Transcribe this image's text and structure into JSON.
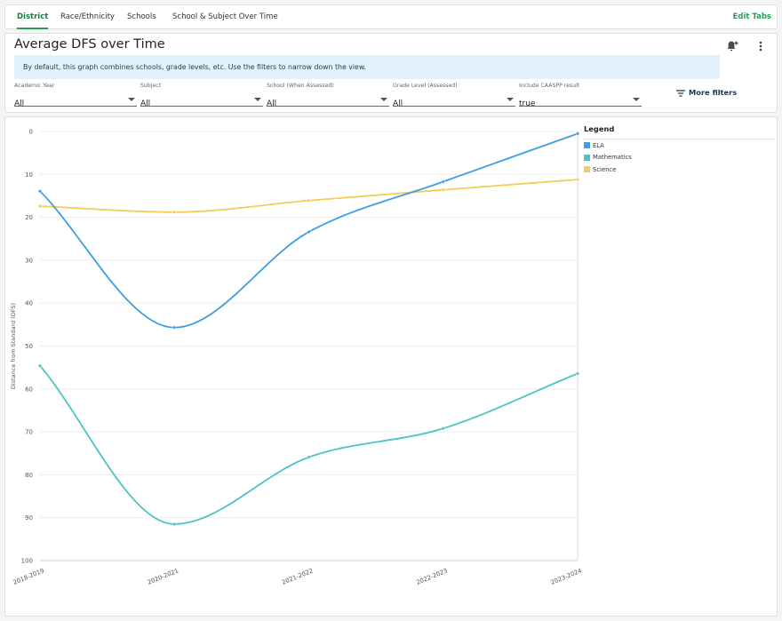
{
  "tabs": [
    "District",
    "Race/Ethnicity",
    "Schools",
    "School & Subject Over Time"
  ],
  "edit_tabs": "Edit Tabs",
  "card": {
    "title": "Average DFS over Time",
    "info": "By default, this graph combines schools, grade levels, etc. Use the filters to narrow down the view."
  },
  "filters": [
    {
      "label": "Academic Year",
      "value": "All"
    },
    {
      "label": "Subject",
      "value": "All"
    },
    {
      "label": "School (When Assessed)",
      "value": "All"
    },
    {
      "label": "Grade Level (Assessed)",
      "value": "All"
    },
    {
      "label": "Include CAASPP result",
      "value": "true"
    }
  ],
  "more_filters": "More filters",
  "icons": {
    "bell": "bell-plus-icon",
    "menu": "kebab-menu-icon",
    "filter": "filter-lines-icon"
  },
  "colors": {
    "accent": "#2a9d55",
    "ela": "#3d9fdf",
    "math": "#4cc4c4",
    "science": "#f5cd5a"
  },
  "chart_data": {
    "type": "line",
    "categories": [
      "2018-2019",
      "2020-2021",
      "2021-2022",
      "2022-2023",
      "2023-2024"
    ],
    "ylabel": "Distance from Standard (DFS)",
    "ylim": [
      100,
      0
    ],
    "yticks": [
      0,
      10,
      20,
      30,
      40,
      50,
      60,
      70,
      80,
      90,
      100
    ],
    "y_reversed": true,
    "grid": true,
    "legend_title": "Legend",
    "legend_position": "right",
    "series": [
      {
        "name": "ELA",
        "color": "#3d9fdf",
        "values": [
          13.9,
          45.7,
          23.4,
          11.7,
          0.5
        ]
      },
      {
        "name": "Mathematics",
        "color": "#4cc4c4",
        "values": [
          54.6,
          91.5,
          75.9,
          69.2,
          56.4
        ]
      },
      {
        "name": "Science",
        "color": "#f5cd5a",
        "values": [
          17.4,
          18.8,
          16.1,
          13.6,
          11.2
        ]
      }
    ]
  }
}
